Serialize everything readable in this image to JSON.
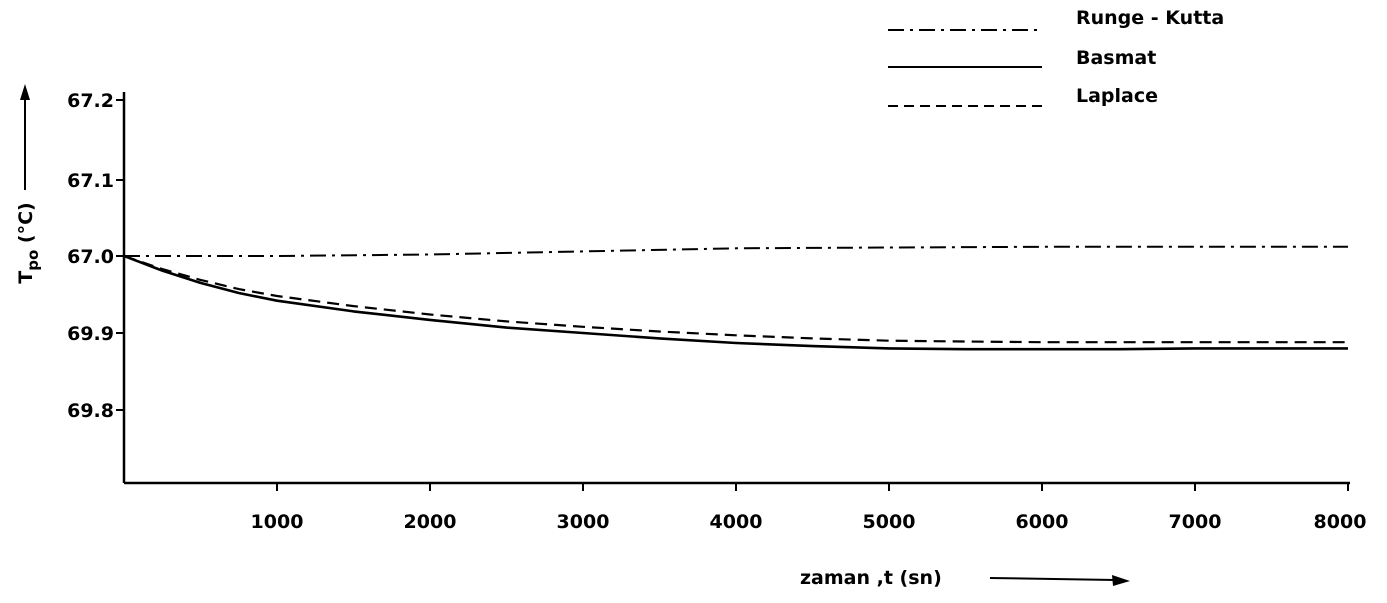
{
  "chart_data": {
    "type": "line",
    "title": "",
    "xlabel": "zaman ,t (sn)",
    "ylabel_main": "T",
    "ylabel_sub": "po",
    "ylabel_unit": "(°C)",
    "xlim": [
      0,
      8000
    ],
    "y_ticks": [
      "67.2",
      "67.1",
      "67.0",
      "69.9",
      "69.8"
    ],
    "x_ticks": [
      "1000",
      "2000",
      "3000",
      "4000",
      "5000",
      "6000",
      "7000",
      "8000"
    ],
    "grid": false,
    "legend_position": "top-right",
    "series": [
      {
        "name": "Runge - Kutta",
        "line_style": "dash-dot",
        "x": [
          0,
          1000,
          2000,
          3000,
          4000,
          5000,
          6000,
          7000,
          8000
        ],
        "y": [
          0.0,
          0.0,
          0.002,
          0.006,
          0.01,
          0.011,
          0.012,
          0.012,
          0.012
        ]
      },
      {
        "name": "Basmat",
        "line_style": "solid",
        "x": [
          0,
          250,
          500,
          750,
          1000,
          1500,
          2000,
          2500,
          3000,
          3500,
          4000,
          4500,
          5000,
          5500,
          6000,
          6500,
          7000,
          7500,
          8000
        ],
        "y": [
          0.0,
          -0.019,
          -0.035,
          -0.048,
          -0.058,
          -0.072,
          -0.083,
          -0.093,
          -0.1,
          -0.107,
          -0.113,
          -0.117,
          -0.12,
          -0.121,
          -0.121,
          -0.121,
          -0.12,
          -0.12,
          -0.12
        ]
      },
      {
        "name": "Laplace",
        "line_style": "dashed",
        "x": [
          0,
          250,
          500,
          750,
          1000,
          1500,
          2000,
          2500,
          3000,
          3500,
          4000,
          4500,
          5000,
          5500,
          6000,
          6500,
          7000,
          7500,
          8000
        ],
        "y": [
          0.0,
          -0.017,
          -0.031,
          -0.043,
          -0.052,
          -0.065,
          -0.076,
          -0.085,
          -0.092,
          -0.098,
          -0.103,
          -0.107,
          -0.11,
          -0.111,
          -0.112,
          -0.112,
          -0.112,
          -0.112,
          -0.112
        ]
      }
    ]
  }
}
